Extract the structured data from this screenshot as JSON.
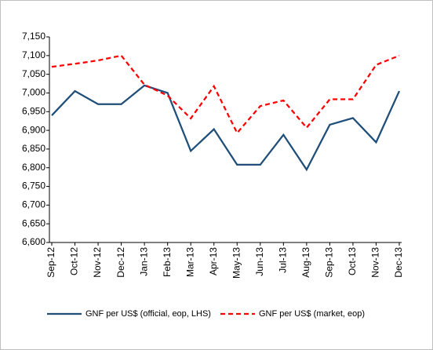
{
  "chart_data": {
    "type": "line",
    "categories": [
      "Sep-12",
      "Oct-12",
      "Nov-12",
      "Dec-12",
      "Jan-13",
      "Feb-13",
      "Mar-13",
      "Apr-13",
      "May-13",
      "Jun-13",
      "Jul-13",
      "Aug-13",
      "Sep-13",
      "Oct-13",
      "Nov-13",
      "Dec-13"
    ],
    "series": [
      {
        "name": "GNF per US$ (official, eop, LHS)",
        "color": "#1f4e79",
        "dash": false,
        "values": [
          6940,
          7005,
          6970,
          6970,
          7020,
          7000,
          6845,
          6903,
          6808,
          6808,
          6888,
          6795,
          6915,
          6933,
          6868,
          7005
        ]
      },
      {
        "name": "GNF per US$ (market, eop)",
        "color": "#ff0000",
        "dash": true,
        "values": [
          7070,
          7078,
          7087,
          7100,
          7022,
          6993,
          6932,
          7018,
          6893,
          6965,
          6980,
          6907,
          6983,
          6983,
          7075,
          7100
        ]
      }
    ],
    "ylim": [
      6600,
      7150
    ],
    "yticks": [
      {
        "value": 6600,
        "label": "6,600"
      },
      {
        "value": 6650,
        "label": "6,650"
      },
      {
        "value": 6700,
        "label": "6,700"
      },
      {
        "value": 6750,
        "label": "6,750"
      },
      {
        "value": 6800,
        "label": "6,800"
      },
      {
        "value": 6850,
        "label": "6,850"
      },
      {
        "value": 6900,
        "label": "6,900"
      },
      {
        "value": 6950,
        "label": "6,950"
      },
      {
        "value": 7000,
        "label": "7,000"
      },
      {
        "value": 7050,
        "label": "7,050"
      },
      {
        "value": 7100,
        "label": "7,100"
      },
      {
        "value": 7150,
        "label": "7,150"
      }
    ],
    "legend": "bottom"
  }
}
